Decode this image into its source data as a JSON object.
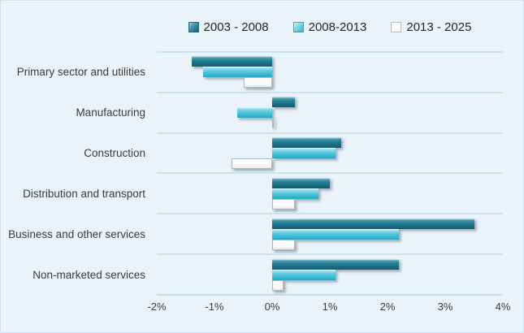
{
  "chart_data": {
    "type": "bar",
    "orientation": "horizontal",
    "title": "",
    "xlabel": "",
    "ylabel": "",
    "xlim": [
      -2,
      4
    ],
    "x_ticks": [
      "-2%",
      "-1%",
      "0%",
      "1%",
      "2%",
      "3%",
      "4%"
    ],
    "grid": "row-separator-lines",
    "legend_position": "top",
    "background_color": "#eaf3fa",
    "gridline_color": "#c9e4f0",
    "categories": [
      "Primary sector and utilities",
      "Manufacturing",
      "Construction",
      "Distribution and transport",
      "Business and other services",
      "Non-marketed services"
    ],
    "series": [
      {
        "name": "2003 - 2008",
        "color": "#2e7f94",
        "values": [
          -1.4,
          0.4,
          1.2,
          1.0,
          3.5,
          2.2
        ]
      },
      {
        "name": "2008-2013",
        "color": "#54c5dc",
        "values": [
          -1.2,
          -0.6,
          1.1,
          0.8,
          2.2,
          1.1
        ]
      },
      {
        "name": "2013 - 2025",
        "color": "#ffffff",
        "values": [
          -0.5,
          0.0,
          -0.7,
          0.4,
          0.4,
          0.2
        ]
      }
    ]
  }
}
